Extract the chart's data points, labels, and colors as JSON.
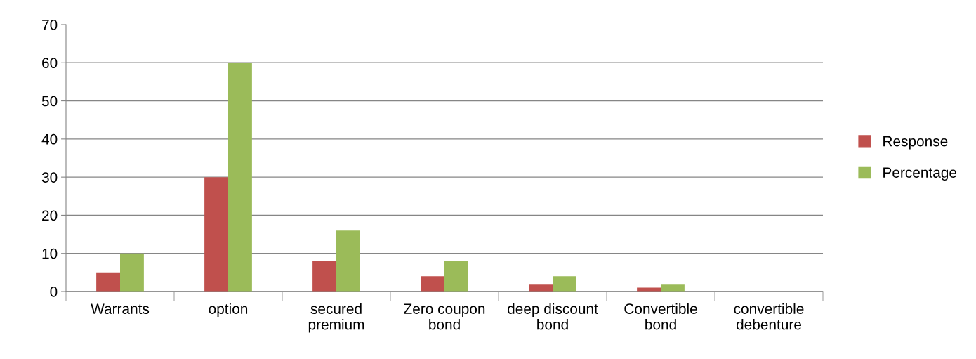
{
  "chart_data": {
    "type": "bar",
    "categories": [
      "Warrants",
      "option",
      "secured premium",
      "Zero coupon bond",
      "deep discount bond",
      "Convertible bond",
      "convertible debenture"
    ],
    "series": [
      {
        "name": "Response",
        "color": "#c0504d",
        "values": [
          5,
          30,
          8,
          4,
          2,
          1,
          0
        ]
      },
      {
        "name": "Percentage",
        "color": "#9bbb59",
        "values": [
          10,
          60,
          16,
          8,
          4,
          2,
          0
        ]
      }
    ],
    "ylim": [
      0,
      70
    ],
    "yticks": [
      0,
      10,
      20,
      30,
      40,
      50,
      60,
      70
    ],
    "grid": "y",
    "legend": "right"
  }
}
